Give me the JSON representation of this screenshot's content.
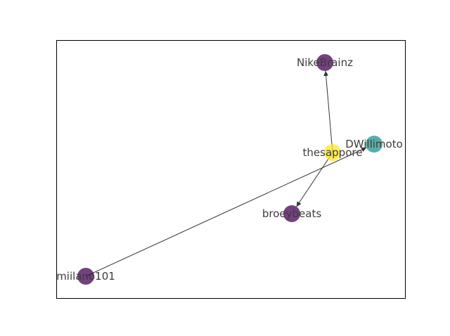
{
  "graph": {
    "nodes": [
      {
        "id": "NikeBrainz",
        "label": "NikeBrainz",
        "color": "#440154"
      },
      {
        "id": "thesappore",
        "label": "thesappore",
        "color": "#fde725"
      },
      {
        "id": "DWillimoto",
        "label": "DWillimoto",
        "color": "#21918c"
      },
      {
        "id": "broeybeats",
        "label": "broeybeats",
        "color": "#440154"
      },
      {
        "id": "miilano101",
        "label": "miilano101",
        "color": "#440154"
      }
    ],
    "edges": [
      {
        "source": "thesappore",
        "target": "NikeBrainz"
      },
      {
        "source": "thesappore",
        "target": "broeybeats"
      },
      {
        "source": "miilano101",
        "target": "DWillimoto"
      }
    ],
    "edge_color": "#333333",
    "frame_color": "#000000"
  }
}
